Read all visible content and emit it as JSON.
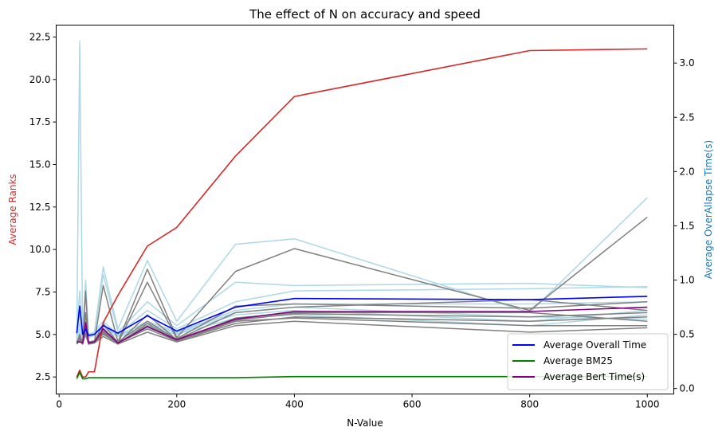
{
  "chart_data": {
    "type": "line",
    "title": "The effect of N on accuracy and speed",
    "xlabel": "N-Value",
    "ylabel_left": "Average Ranks",
    "ylabel_right": "Average OverAllapse Time(s)",
    "colors": {
      "ranks": "#d62728",
      "overall": "#0000ff",
      "bm25": "#008000",
      "bert": "#800080",
      "overall_runs": "#add8e6",
      "bert_runs": "#808080",
      "left_label": "#d62728",
      "right_label": "#1f77b4"
    },
    "x_axis": {
      "lim": [
        -5,
        1045
      ],
      "ticks": [
        0,
        200,
        400,
        600,
        800,
        1000
      ]
    },
    "y_left": {
      "lim": [
        1.5,
        23.2
      ],
      "ticks": [
        2.5,
        5.0,
        7.5,
        10.0,
        12.5,
        15.0,
        17.5,
        20.0,
        22.5
      ],
      "tick_labels": [
        "2.5",
        "5.0",
        "7.5",
        "10.0",
        "12.5",
        "15.0",
        "17.5",
        "20.0",
        "22.5"
      ]
    },
    "y_right": {
      "lim": [
        -0.05,
        3.35
      ],
      "ticks": [
        0.0,
        0.5,
        1.0,
        1.5,
        2.0,
        2.5,
        3.0
      ],
      "tick_labels": [
        "0.0",
        "0.5",
        "1.0",
        "1.5",
        "2.0",
        "2.5",
        "3.0"
      ]
    },
    "x": [
      30,
      35,
      40,
      45,
      50,
      60,
      75,
      100,
      150,
      200,
      300,
      400,
      800,
      1000
    ],
    "ranks_series": {
      "name": "Average Ranks",
      "values": [
        2.5,
        2.9,
        2.5,
        2.5,
        2.8,
        2.8,
        5.7,
        7.3,
        10.2,
        11.3,
        15.5,
        19.0,
        21.7,
        21.8
      ]
    },
    "legend": [
      {
        "label": "Average Overall Time",
        "color": "#0000ff"
      },
      {
        "label": "Average BM25",
        "color": "#008000"
      },
      {
        "label": "Average Bert Time(s)",
        "color": "#800080"
      }
    ],
    "series": [
      {
        "name": "Average Overall Time",
        "axis": "right",
        "values": [
          0.51,
          0.76,
          0.5,
          0.55,
          0.49,
          0.5,
          0.58,
          0.51,
          0.67,
          0.53,
          0.75,
          0.83,
          0.82,
          0.85
        ]
      },
      {
        "name": "Average BM25",
        "axis": "right",
        "values": [
          0.09,
          0.15,
          0.09,
          0.09,
          0.1,
          0.1,
          0.1,
          0.1,
          0.1,
          0.1,
          0.1,
          0.11,
          0.11,
          0.11
        ]
      },
      {
        "name": "Average Bert Time(s)",
        "axis": "right",
        "values": [
          0.43,
          0.43,
          0.42,
          0.61,
          0.42,
          0.43,
          0.55,
          0.42,
          0.57,
          0.45,
          0.64,
          0.71,
          0.71,
          0.75
        ]
      }
    ],
    "overall_runs": [
      [
        0.45,
        3.2,
        0.5,
        1.0,
        0.5,
        0.52,
        1.12,
        0.55,
        1.18,
        0.62,
        1.33,
        1.38,
        0.7,
        1.76
      ],
      [
        0.5,
        0.9,
        0.48,
        0.6,
        0.48,
        0.5,
        1.05,
        0.52,
        0.8,
        0.58,
        0.98,
        0.95,
        0.97,
        0.93
      ],
      [
        0.48,
        0.7,
        0.5,
        0.65,
        0.5,
        0.52,
        0.62,
        0.5,
        0.72,
        0.55,
        0.8,
        0.9,
        0.92,
        0.94
      ],
      [
        0.52,
        0.6,
        0.49,
        0.58,
        0.49,
        0.51,
        0.58,
        0.49,
        0.62,
        0.52,
        0.72,
        0.78,
        0.78,
        0.8
      ],
      [
        0.49,
        0.55,
        0.48,
        0.55,
        0.48,
        0.5,
        0.55,
        0.49,
        0.58,
        0.51,
        0.68,
        0.72,
        0.62,
        0.72
      ],
      [
        0.47,
        0.52,
        0.47,
        0.52,
        0.47,
        0.49,
        0.52,
        0.48,
        0.55,
        0.5,
        0.65,
        0.68,
        0.58,
        0.68
      ],
      [
        0.5,
        0.58,
        0.49,
        0.56,
        0.49,
        0.5,
        0.56,
        0.5,
        0.6,
        0.52,
        0.7,
        0.75,
        0.66,
        0.64
      ]
    ],
    "bert_runs": [
      [
        0.42,
        0.5,
        0.42,
        0.9,
        0.42,
        0.43,
        0.95,
        0.43,
        1.1,
        0.47,
        1.08,
        1.29,
        0.72,
        1.58
      ],
      [
        0.43,
        0.48,
        0.42,
        0.7,
        0.42,
        0.43,
        0.6,
        0.42,
        0.98,
        0.46,
        0.76,
        0.78,
        0.74,
        0.8
      ],
      [
        0.42,
        0.47,
        0.41,
        0.6,
        0.41,
        0.42,
        0.55,
        0.42,
        0.68,
        0.45,
        0.7,
        0.75,
        0.82,
        0.72
      ],
      [
        0.41,
        0.46,
        0.41,
        0.55,
        0.41,
        0.42,
        0.52,
        0.41,
        0.6,
        0.44,
        0.65,
        0.7,
        0.7,
        0.62
      ],
      [
        0.42,
        0.45,
        0.42,
        0.52,
        0.42,
        0.43,
        0.5,
        0.42,
        0.55,
        0.44,
        0.62,
        0.65,
        0.58,
        0.58
      ],
      [
        0.41,
        0.44,
        0.41,
        0.5,
        0.41,
        0.42,
        0.48,
        0.41,
        0.52,
        0.43,
        0.58,
        0.62,
        0.52,
        0.56
      ],
      [
        0.42,
        0.46,
        0.42,
        0.53,
        0.42,
        0.43,
        0.51,
        0.42,
        0.58,
        0.44,
        0.6,
        0.66,
        0.62,
        0.66
      ],
      [
        0.43,
        0.48,
        0.43,
        0.58,
        0.43,
        0.44,
        0.53,
        0.43,
        0.62,
        0.45,
        0.63,
        0.69,
        0.66,
        0.7
      ]
    ]
  }
}
